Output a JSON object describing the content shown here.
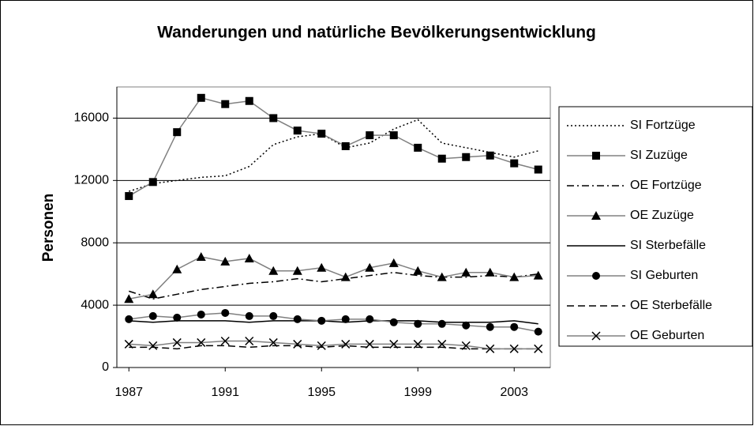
{
  "chart_data": {
    "type": "line",
    "title": "Wanderungen und natürliche Bevölkerungsentwicklung",
    "ylabel": "Personen",
    "x": [
      1987,
      1988,
      1989,
      1990,
      1991,
      1992,
      1993,
      1994,
      1995,
      1996,
      1997,
      1998,
      1999,
      2000,
      2001,
      2002,
      2003,
      2004
    ],
    "xlim": [
      1986.5,
      2004.5
    ],
    "xticks": [
      1987,
      1991,
      1995,
      1999,
      2003
    ],
    "ylim": [
      0,
      18000
    ],
    "yticks": [
      0,
      4000,
      8000,
      12000,
      16000
    ],
    "grid": true,
    "legend": "right",
    "series": [
      {
        "name": "SI Fortzüge",
        "color": "#000000",
        "dash": "dotted",
        "marker": null,
        "values": [
          11300,
          11800,
          12000,
          12200,
          12300,
          12900,
          14300,
          14800,
          15000,
          14100,
          14400,
          15300,
          15900,
          14400,
          14100,
          13800,
          13500,
          13900
        ]
      },
      {
        "name": "SI Zuzüge",
        "color": "#808080",
        "dash": "solid",
        "marker": "square",
        "marker_color": "#000000",
        "values": [
          11000,
          11900,
          15100,
          17300,
          16900,
          17100,
          16000,
          15200,
          15000,
          14200,
          14900,
          14900,
          14100,
          13400,
          13500,
          13600,
          13100,
          12700
        ]
      },
      {
        "name": "OE Fortzüge",
        "color": "#000000",
        "dash": "dashdot",
        "marker": null,
        "values": [
          4900,
          4400,
          4700,
          5000,
          5200,
          5400,
          5500,
          5700,
          5500,
          5700,
          5900,
          6100,
          5900,
          5800,
          5800,
          5900,
          5800,
          6000
        ]
      },
      {
        "name": "OE Zuzüge",
        "color": "#808080",
        "dash": "solid",
        "marker": "triangle",
        "marker_color": "#000000",
        "values": [
          4400,
          4700,
          6300,
          7100,
          6800,
          7000,
          6200,
          6200,
          6400,
          5800,
          6400,
          6700,
          6200,
          5800,
          6100,
          6100,
          5800,
          5900
        ]
      },
      {
        "name": "SI Sterbefälle",
        "color": "#000000",
        "dash": "solid",
        "marker": null,
        "values": [
          3000,
          2900,
          3000,
          3000,
          3000,
          2900,
          3000,
          3000,
          3000,
          2900,
          3000,
          3000,
          3000,
          2900,
          2900,
          2900,
          3000,
          2800
        ]
      },
      {
        "name": "SI Geburten",
        "color": "#808080",
        "dash": "solid",
        "marker": "circle",
        "marker_color": "#000000",
        "values": [
          3100,
          3300,
          3200,
          3400,
          3500,
          3300,
          3300,
          3100,
          3000,
          3100,
          3100,
          2900,
          2800,
          2800,
          2700,
          2600,
          2600,
          2300
        ]
      },
      {
        "name": "OE Sterbefälle",
        "color": "#000000",
        "dash": "dashed",
        "marker": null,
        "values": [
          1300,
          1300,
          1200,
          1400,
          1400,
          1300,
          1400,
          1400,
          1300,
          1400,
          1300,
          1300,
          1300,
          1300,
          1200,
          1200,
          1200,
          1200
        ]
      },
      {
        "name": "OE Geburten",
        "color": "#808080",
        "dash": "solid",
        "marker": "x",
        "marker_color": "#000000",
        "values": [
          1500,
          1400,
          1600,
          1600,
          1700,
          1700,
          1600,
          1500,
          1400,
          1500,
          1500,
          1500,
          1500,
          1500,
          1400,
          1200,
          1200,
          1200
        ]
      }
    ]
  }
}
